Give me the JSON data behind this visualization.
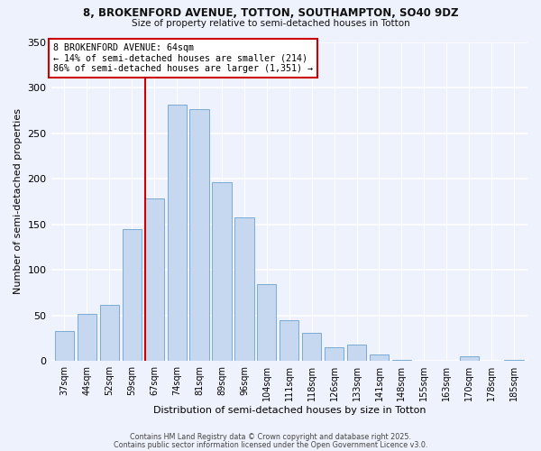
{
  "title1": "8, BROKENFORD AVENUE, TOTTON, SOUTHAMPTON, SO40 9DZ",
  "title2": "Size of property relative to semi-detached houses in Totton",
  "xlabel": "Distribution of semi-detached houses by size in Totton",
  "ylabel": "Number of semi-detached properties",
  "bar_labels": [
    "37sqm",
    "44sqm",
    "52sqm",
    "59sqm",
    "67sqm",
    "74sqm",
    "81sqm",
    "89sqm",
    "96sqm",
    "104sqm",
    "111sqm",
    "118sqm",
    "126sqm",
    "133sqm",
    "141sqm",
    "148sqm",
    "155sqm",
    "163sqm",
    "170sqm",
    "178sqm",
    "185sqm"
  ],
  "bar_values": [
    33,
    52,
    62,
    145,
    178,
    281,
    276,
    196,
    158,
    84,
    45,
    31,
    15,
    18,
    7,
    1,
    0,
    0,
    5,
    0,
    1
  ],
  "bar_color": "#c5d8f0",
  "bar_edge_color": "#7aabd4",
  "highlight_line_index": 4,
  "highlight_line_color": "#cc0000",
  "annotation_title": "8 BROKENFORD AVENUE: 64sqm",
  "annotation_line1": "← 14% of semi-detached houses are smaller (214)",
  "annotation_line2": "86% of semi-detached houses are larger (1,351) →",
  "annotation_box_color": "#ffffff",
  "annotation_box_edge": "#cc0000",
  "ylim": [
    0,
    350
  ],
  "yticks": [
    0,
    50,
    100,
    150,
    200,
    250,
    300,
    350
  ],
  "footer1": "Contains HM Land Registry data © Crown copyright and database right 2025.",
  "footer2": "Contains public sector information licensed under the Open Government Licence v3.0.",
  "bg_color": "#eef2fc"
}
